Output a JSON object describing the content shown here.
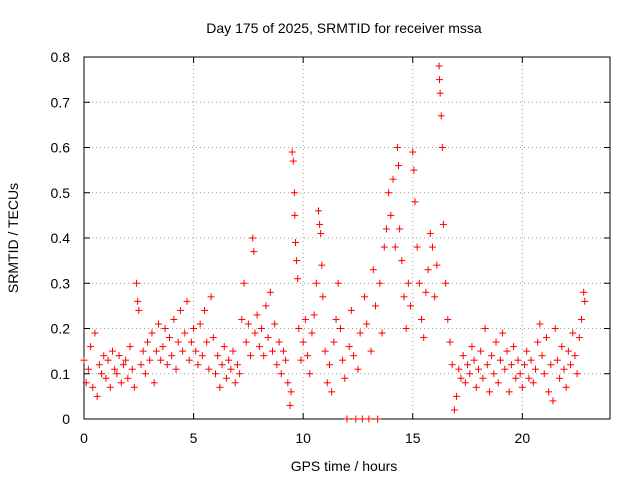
{
  "chart_data": {
    "type": "scatter",
    "title": "Day 175 of 2025, SRMTID for receiver mssa",
    "xlabel": "GPS time / hours",
    "ylabel": "SRMTID / TECUs",
    "xlim": [
      0,
      24
    ],
    "ylim": [
      0,
      0.8
    ],
    "x_ticks": [
      0,
      5,
      10,
      15,
      20
    ],
    "x_tick_labels": [
      "0",
      "5",
      "10",
      "15",
      "20"
    ],
    "y_ticks": [
      0,
      0.1,
      0.2,
      0.3,
      0.4,
      0.5,
      0.6,
      0.7,
      0.8
    ],
    "y_tick_labels": [
      "0",
      "0.1",
      "0.2",
      "0.3",
      "0.4",
      "0.5",
      "0.6",
      "0.7",
      "0.8"
    ],
    "grid": true,
    "legend": "none",
    "marker": "+",
    "series": [
      {
        "name": "SRMTID",
        "color": "#ff0000",
        "points": [
          [
            0.0,
            0.13
          ],
          [
            0.1,
            0.08
          ],
          [
            0.2,
            0.11
          ],
          [
            0.3,
            0.16
          ],
          [
            0.4,
            0.07
          ],
          [
            0.5,
            0.19
          ],
          [
            0.6,
            0.05
          ],
          [
            0.7,
            0.12
          ],
          [
            0.8,
            0.1
          ],
          [
            0.9,
            0.14
          ],
          [
            1.0,
            0.09
          ],
          [
            1.1,
            0.13
          ],
          [
            1.2,
            0.07
          ],
          [
            1.3,
            0.15
          ],
          [
            1.4,
            0.11
          ],
          [
            1.5,
            0.1
          ],
          [
            1.6,
            0.14
          ],
          [
            1.7,
            0.08
          ],
          [
            1.8,
            0.12
          ],
          [
            1.9,
            0.13
          ],
          [
            2.0,
            0.09
          ],
          [
            2.1,
            0.16
          ],
          [
            2.2,
            0.11
          ],
          [
            2.3,
            0.07
          ],
          [
            2.4,
            0.3
          ],
          [
            2.45,
            0.26
          ],
          [
            2.5,
            0.24
          ],
          [
            2.6,
            0.12
          ],
          [
            2.7,
            0.15
          ],
          [
            2.8,
            0.1
          ],
          [
            2.9,
            0.17
          ],
          [
            3.0,
            0.13
          ],
          [
            3.1,
            0.19
          ],
          [
            3.2,
            0.08
          ],
          [
            3.3,
            0.15
          ],
          [
            3.4,
            0.21
          ],
          [
            3.5,
            0.13
          ],
          [
            3.6,
            0.16
          ],
          [
            3.7,
            0.2
          ],
          [
            3.8,
            0.12
          ],
          [
            3.9,
            0.18
          ],
          [
            4.0,
            0.14
          ],
          [
            4.1,
            0.22
          ],
          [
            4.2,
            0.11
          ],
          [
            4.3,
            0.17
          ],
          [
            4.4,
            0.24
          ],
          [
            4.5,
            0.15
          ],
          [
            4.6,
            0.19
          ],
          [
            4.7,
            0.26
          ],
          [
            4.8,
            0.13
          ],
          [
            4.9,
            0.17
          ],
          [
            5.0,
            0.2
          ],
          [
            5.1,
            0.15
          ],
          [
            5.2,
            0.12
          ],
          [
            5.3,
            0.21
          ],
          [
            5.4,
            0.14
          ],
          [
            5.5,
            0.24
          ],
          [
            5.6,
            0.17
          ],
          [
            5.7,
            0.11
          ],
          [
            5.8,
            0.27
          ],
          [
            5.9,
            0.18
          ],
          [
            6.0,
            0.1
          ],
          [
            6.1,
            0.14
          ],
          [
            6.2,
            0.07
          ],
          [
            6.3,
            0.12
          ],
          [
            6.4,
            0.16
          ],
          [
            6.5,
            0.09
          ],
          [
            6.6,
            0.13
          ],
          [
            6.7,
            0.11
          ],
          [
            6.8,
            0.15
          ],
          [
            6.9,
            0.08
          ],
          [
            7.0,
            0.12
          ],
          [
            7.1,
            0.1
          ],
          [
            7.2,
            0.22
          ],
          [
            7.3,
            0.3
          ],
          [
            7.4,
            0.17
          ],
          [
            7.5,
            0.21
          ],
          [
            7.6,
            0.14
          ],
          [
            7.7,
            0.4
          ],
          [
            7.75,
            0.37
          ],
          [
            7.8,
            0.19
          ],
          [
            7.9,
            0.23
          ],
          [
            8.0,
            0.16
          ],
          [
            8.1,
            0.2
          ],
          [
            8.2,
            0.14
          ],
          [
            8.3,
            0.25
          ],
          [
            8.4,
            0.18
          ],
          [
            8.5,
            0.28
          ],
          [
            8.6,
            0.15
          ],
          [
            8.7,
            0.21
          ],
          [
            8.8,
            0.12
          ],
          [
            8.9,
            0.17
          ],
          [
            9.0,
            0.1
          ],
          [
            9.1,
            0.15
          ],
          [
            9.2,
            0.13
          ],
          [
            9.3,
            0.08
          ],
          [
            9.4,
            0.03
          ],
          [
            9.45,
            0.06
          ],
          [
            9.5,
            0.59
          ],
          [
            9.55,
            0.57
          ],
          [
            9.6,
            0.5
          ],
          [
            9.62,
            0.45
          ],
          [
            9.65,
            0.39
          ],
          [
            9.7,
            0.35
          ],
          [
            9.75,
            0.31
          ],
          [
            9.8,
            0.2
          ],
          [
            9.9,
            0.13
          ],
          [
            10.0,
            0.17
          ],
          [
            10.1,
            0.22
          ],
          [
            10.2,
            0.14
          ],
          [
            10.3,
            0.1
          ],
          [
            10.4,
            0.19
          ],
          [
            10.5,
            0.23
          ],
          [
            10.6,
            0.3
          ],
          [
            10.7,
            0.46
          ],
          [
            10.75,
            0.43
          ],
          [
            10.8,
            0.41
          ],
          [
            10.85,
            0.34
          ],
          [
            10.9,
            0.27
          ],
          [
            11.0,
            0.15
          ],
          [
            11.1,
            0.08
          ],
          [
            11.2,
            0.12
          ],
          [
            11.3,
            0.06
          ],
          [
            11.4,
            0.17
          ],
          [
            11.5,
            0.22
          ],
          [
            11.6,
            0.3
          ],
          [
            11.7,
            0.2
          ],
          [
            11.8,
            0.13
          ],
          [
            11.9,
            0.09
          ],
          [
            12.0,
            0.0
          ],
          [
            12.1,
            0.16
          ],
          [
            12.2,
            0.24
          ],
          [
            12.3,
            0.14
          ],
          [
            12.4,
            0.0
          ],
          [
            12.5,
            0.11
          ],
          [
            12.6,
            0.19
          ],
          [
            12.7,
            0.0
          ],
          [
            12.8,
            0.27
          ],
          [
            12.9,
            0.21
          ],
          [
            13.0,
            0.0
          ],
          [
            13.1,
            0.15
          ],
          [
            13.2,
            0.33
          ],
          [
            13.3,
            0.25
          ],
          [
            13.4,
            0.0
          ],
          [
            13.5,
            0.3
          ],
          [
            13.6,
            0.19
          ],
          [
            13.7,
            0.38
          ],
          [
            13.8,
            0.42
          ],
          [
            13.9,
            0.5
          ],
          [
            14.0,
            0.45
          ],
          [
            14.1,
            0.53
          ],
          [
            14.2,
            0.38
          ],
          [
            14.3,
            0.6
          ],
          [
            14.35,
            0.56
          ],
          [
            14.4,
            0.42
          ],
          [
            14.5,
            0.35
          ],
          [
            14.6,
            0.27
          ],
          [
            14.7,
            0.2
          ],
          [
            14.8,
            0.3
          ],
          [
            14.9,
            0.25
          ],
          [
            15.0,
            0.59
          ],
          [
            15.05,
            0.55
          ],
          [
            15.1,
            0.48
          ],
          [
            15.2,
            0.38
          ],
          [
            15.3,
            0.3
          ],
          [
            15.4,
            0.22
          ],
          [
            15.5,
            0.18
          ],
          [
            15.6,
            0.28
          ],
          [
            15.7,
            0.33
          ],
          [
            15.8,
            0.41
          ],
          [
            15.9,
            0.38
          ],
          [
            16.0,
            0.27
          ],
          [
            16.1,
            0.34
          ],
          [
            16.2,
            0.78
          ],
          [
            16.22,
            0.75
          ],
          [
            16.25,
            0.72
          ],
          [
            16.3,
            0.67
          ],
          [
            16.35,
            0.6
          ],
          [
            16.4,
            0.43
          ],
          [
            16.5,
            0.3
          ],
          [
            16.6,
            0.22
          ],
          [
            16.7,
            0.17
          ],
          [
            16.8,
            0.12
          ],
          [
            16.9,
            0.02
          ],
          [
            17.0,
            0.05
          ],
          [
            17.1,
            0.11
          ],
          [
            17.2,
            0.09
          ],
          [
            17.3,
            0.14
          ],
          [
            17.4,
            0.08
          ],
          [
            17.5,
            0.12
          ],
          [
            17.6,
            0.1
          ],
          [
            17.7,
            0.16
          ],
          [
            17.8,
            0.13
          ],
          [
            17.9,
            0.07
          ],
          [
            18.0,
            0.11
          ],
          [
            18.1,
            0.15
          ],
          [
            18.2,
            0.09
          ],
          [
            18.3,
            0.2
          ],
          [
            18.4,
            0.12
          ],
          [
            18.5,
            0.06
          ],
          [
            18.6,
            0.14
          ],
          [
            18.7,
            0.1
          ],
          [
            18.8,
            0.17
          ],
          [
            18.9,
            0.08
          ],
          [
            19.0,
            0.13
          ],
          [
            19.1,
            0.19
          ],
          [
            19.2,
            0.11
          ],
          [
            19.3,
            0.15
          ],
          [
            19.4,
            0.06
          ],
          [
            19.5,
            0.12
          ],
          [
            19.6,
            0.16
          ],
          [
            19.7,
            0.09
          ],
          [
            19.8,
            0.13
          ],
          [
            19.9,
            0.1
          ],
          [
            20.0,
            0.07
          ],
          [
            20.1,
            0.12
          ],
          [
            20.2,
            0.15
          ],
          [
            20.3,
            0.09
          ],
          [
            20.4,
            0.13
          ],
          [
            20.5,
            0.08
          ],
          [
            20.6,
            0.11
          ],
          [
            20.7,
            0.17
          ],
          [
            20.8,
            0.21
          ],
          [
            20.9,
            0.14
          ],
          [
            21.0,
            0.1
          ],
          [
            21.1,
            0.18
          ],
          [
            21.2,
            0.06
          ],
          [
            21.3,
            0.12
          ],
          [
            21.4,
            0.04
          ],
          [
            21.5,
            0.2
          ],
          [
            21.6,
            0.13
          ],
          [
            21.7,
            0.09
          ],
          [
            21.8,
            0.16
          ],
          [
            21.9,
            0.11
          ],
          [
            22.0,
            0.07
          ],
          [
            22.1,
            0.15
          ],
          [
            22.2,
            0.12
          ],
          [
            22.3,
            0.19
          ],
          [
            22.4,
            0.14
          ],
          [
            22.5,
            0.1
          ],
          [
            22.6,
            0.18
          ],
          [
            22.7,
            0.22
          ],
          [
            22.8,
            0.28
          ],
          [
            22.85,
            0.26
          ]
        ]
      }
    ]
  }
}
